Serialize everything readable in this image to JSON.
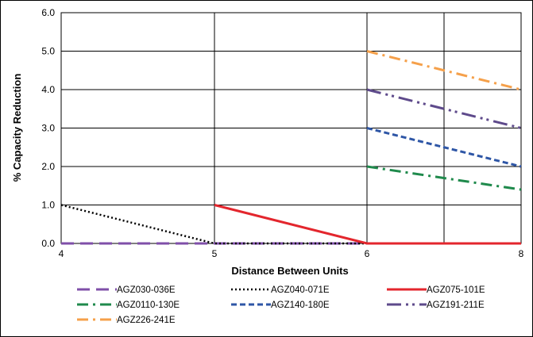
{
  "chart_data": {
    "type": "line",
    "xlabel": "Distance Between Units",
    "ylabel": "% Capacity Reduction",
    "xlim": [
      4,
      8
    ],
    "ylim": [
      0,
      6
    ],
    "x_ticks": [
      "4",
      "5",
      "6",
      "8"
    ],
    "x_tick_values": [
      4,
      5,
      6,
      8
    ],
    "y_ticks": [
      "0.0",
      "1.0",
      "2.0",
      "3.0",
      "4.0",
      "5.0",
      "6.0"
    ],
    "grid": true,
    "legend_position": "bottom",
    "series": [
      {
        "name": "AGZ030-036E",
        "color": "#7f4fa8",
        "dash": "long-dash",
        "x": [
          4,
          5,
          6,
          8
        ],
        "y": [
          0,
          0,
          0,
          0
        ]
      },
      {
        "name": "AGZ040-071E",
        "color": "#000000",
        "dash": "dot",
        "x": [
          4,
          5,
          6,
          8
        ],
        "y": [
          1.0,
          0,
          0,
          0
        ]
      },
      {
        "name": "AGZ075-101E",
        "color": "#e3262d",
        "dash": "solid",
        "x": [
          5,
          6,
          8
        ],
        "y": [
          1.0,
          0,
          0
        ]
      },
      {
        "name": "AGZ0110-130E",
        "color": "#1f8a4c",
        "dash": "dash-dot",
        "x": [
          6,
          8
        ],
        "y": [
          2.0,
          1.4
        ]
      },
      {
        "name": "AGZ140-180E",
        "color": "#2e56a6",
        "dash": "dash",
        "x": [
          6,
          8
        ],
        "y": [
          3.0,
          2.0
        ]
      },
      {
        "name": "AGZ191-211E",
        "color": "#5e4a8b",
        "dash": "long-dash-dot-dot",
        "x": [
          6,
          8
        ],
        "y": [
          4.0,
          3.0
        ]
      },
      {
        "name": "AGZ226-241E",
        "color": "#f5a04a",
        "dash": "dash-dot",
        "x": [
          6,
          8
        ],
        "y": [
          5.0,
          4.0
        ]
      }
    ]
  }
}
